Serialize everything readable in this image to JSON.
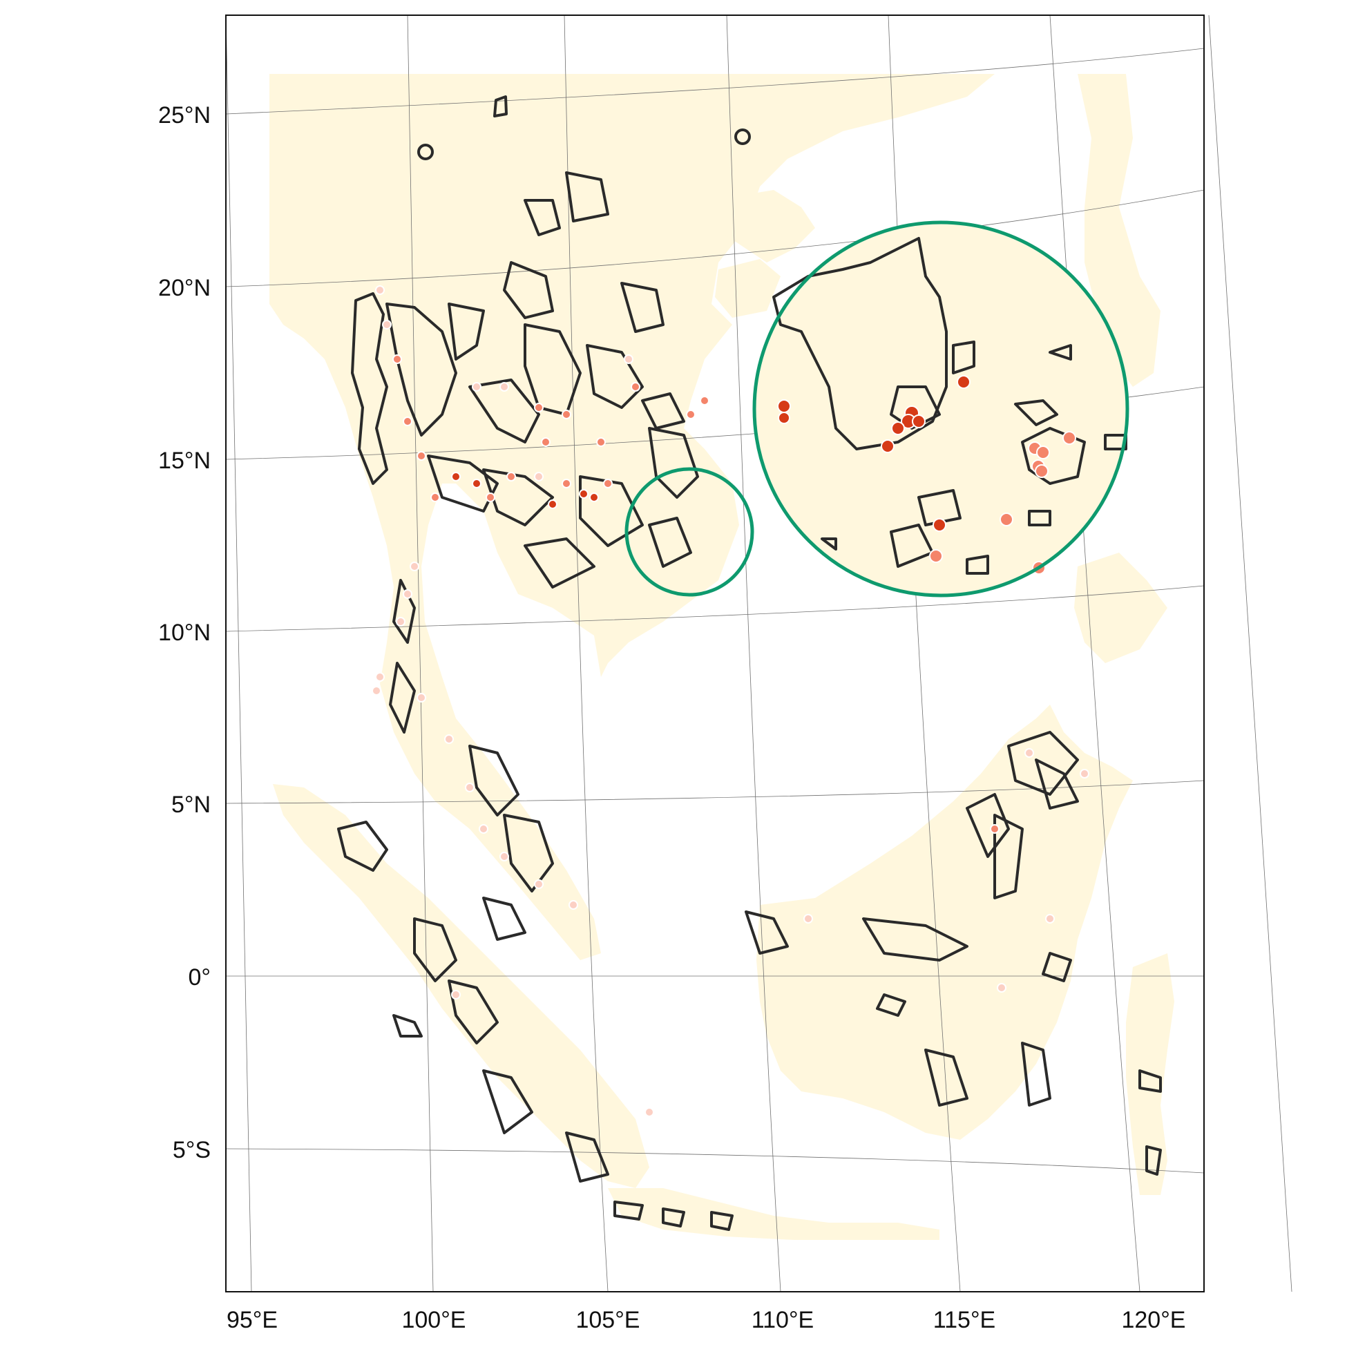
{
  "map": {
    "lon_labels": [
      "95°E",
      "100°E",
      "105°E",
      "110°E",
      "115°E",
      "120°E"
    ],
    "lat_labels": [
      "25°N",
      "20°N",
      "15°N",
      "10°N",
      "5°N",
      "0°",
      "5°S"
    ],
    "colors": {
      "land": "#fff7dd",
      "protected_area_outline": "#2a2a2a",
      "highlight_ring": "#0e9a6e",
      "point_light": "#fcd0c4",
      "point_medium": "#f4846a",
      "point_dark": "#d63a17",
      "graticule": "#6f6f6f"
    },
    "highlight": {
      "description_shown": "zoom inset of southern Cambodia region",
      "inset_points": 20
    }
  }
}
